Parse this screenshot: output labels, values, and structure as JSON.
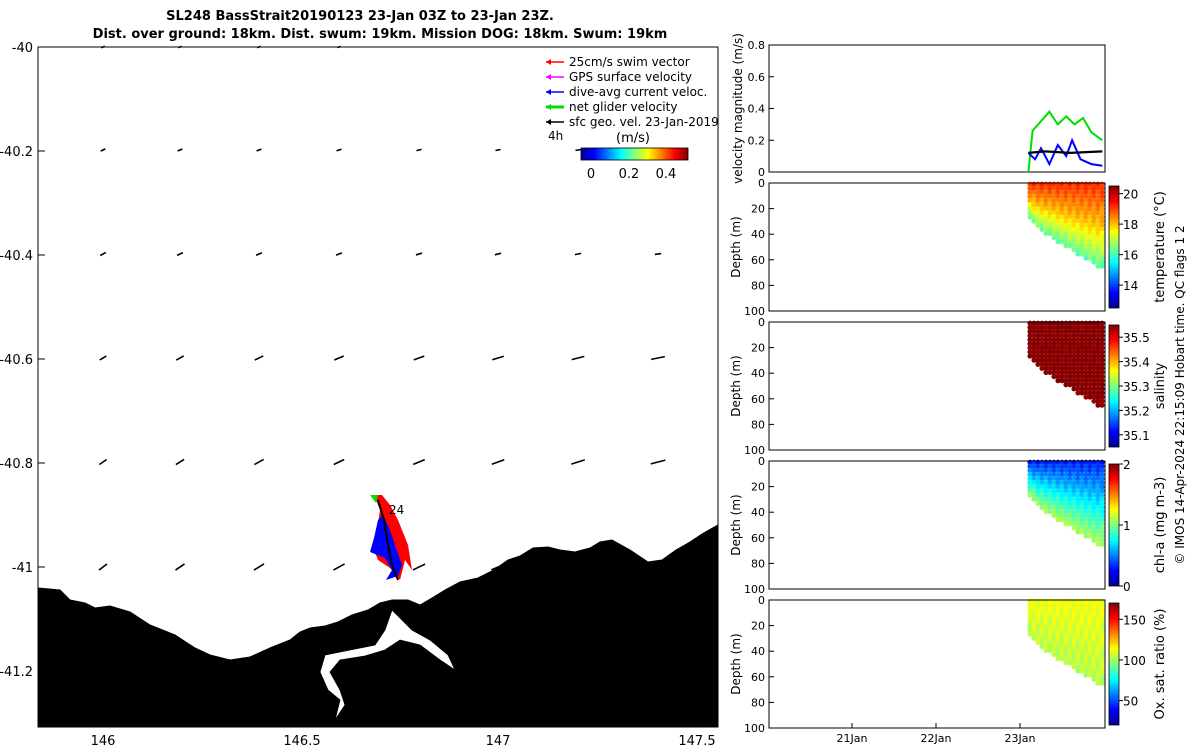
{
  "title": {
    "line1": "SL248 BassStrait20190123 23-Jan 03Z to 23-Jan 23Z.",
    "line2": "Dist. over ground: 18km. Dist. swum: 19km. Mission DOG: 18km. Swum: 19km"
  },
  "credit": "© IMOS 14-Apr-2024 22:15:09 Hobart time. QC flags 1  2",
  "colors": {
    "land": "#f9cfa0",
    "swim": "#ff0000",
    "gps": "#ff00ff",
    "current": "#0000ff",
    "net": "#00dd00",
    "geo": "#000000"
  },
  "map": {
    "lon_ticks": [
      "146",
      "146.5",
      "147",
      "147.5"
    ],
    "lat_ticks": [
      "-40",
      "-40.2",
      "-40.4",
      "-40.6",
      "-40.8",
      "-41",
      "-41.2"
    ],
    "lon_range": [
      145.83,
      147.55
    ],
    "lat_range": [
      -41.3,
      -40.0
    ],
    "legend": [
      {
        "label": "25cm/s swim vector",
        "color": "#ff0000"
      },
      {
        "label": "GPS surface velocity",
        "color": "#ff00ff"
      },
      {
        "label": "dive-avg current veloc.",
        "color": "#0000ff"
      },
      {
        "label": "net glider velocity",
        "color": "#00dd00"
      },
      {
        "label": "sfc geo. vel. 23-Jan-2019",
        "color": "#000000"
      }
    ],
    "interval_label": "4h",
    "colorbar_unit": "(m/s)",
    "colorbar_ticks": [
      "0",
      "0.2",
      "0.4"
    ],
    "isobaths": "isobaths: 0   200  1000m",
    "track_label": "24"
  },
  "chart_data": [
    {
      "type": "line",
      "ylabel": "velocity magnitude (m/s)",
      "ylim": [
        0,
        0.8
      ],
      "y_ticks": [
        "0",
        "0.2",
        "0.4",
        "0.6",
        "0.8"
      ],
      "x_ticks": [
        "21Jan",
        "22Jan",
        "23Jan"
      ],
      "series": [
        {
          "color": "#00dd00",
          "points": [
            [
              23.1,
              0.0
            ],
            [
              23.15,
              0.26
            ],
            [
              23.25,
              0.32
            ],
            [
              23.35,
              0.38
            ],
            [
              23.45,
              0.3
            ],
            [
              23.55,
              0.35
            ],
            [
              23.65,
              0.3
            ],
            [
              23.75,
              0.34
            ],
            [
              23.85,
              0.25
            ],
            [
              23.98,
              0.2
            ]
          ]
        },
        {
          "color": "#0000ff",
          "points": [
            [
              23.1,
              0.12
            ],
            [
              23.18,
              0.08
            ],
            [
              23.25,
              0.15
            ],
            [
              23.35,
              0.05
            ],
            [
              23.45,
              0.17
            ],
            [
              23.55,
              0.1
            ],
            [
              23.62,
              0.2
            ],
            [
              23.72,
              0.08
            ],
            [
              23.85,
              0.05
            ],
            [
              23.98,
              0.04
            ]
          ]
        },
        {
          "color": "#000000",
          "points": [
            [
              23.1,
              0.12
            ],
            [
              23.3,
              0.13
            ],
            [
              23.6,
              0.12
            ],
            [
              23.98,
              0.13
            ]
          ]
        }
      ]
    },
    {
      "type": "scatter",
      "ylabel": "Depth (m)",
      "clabel": "temperature (°C)",
      "cticks": [
        "14",
        "16",
        "18",
        "20"
      ],
      "crange": [
        12.5,
        20.5
      ],
      "surface_value": 19.2,
      "mid_value": 18.0,
      "bottom_value": 16.2
    },
    {
      "type": "scatter",
      "ylabel": "Depth (m)",
      "clabel": "salinity",
      "cticks": [
        "35.1",
        "35.2",
        "35.3",
        "35.4",
        "35.5"
      ],
      "crange": [
        35.05,
        35.55
      ],
      "surface_value": 35.55,
      "mid_value": 35.55,
      "bottom_value": 35.55
    },
    {
      "type": "scatter",
      "ylabel": "Depth (m)",
      "clabel": "chl-a (mg m-3)",
      "cticks": [
        "0",
        "1",
        "2"
      ],
      "crange": [
        0,
        2
      ],
      "surface_value": 0.3,
      "mid_value": 0.7,
      "bottom_value": 1.1
    },
    {
      "type": "scatter",
      "ylabel": "Depth (m)",
      "clabel": "Ox. sat. ratio (%)",
      "cticks": [
        "50",
        "100",
        "150"
      ],
      "crange": [
        20,
        170
      ],
      "surface_value": 112,
      "mid_value": 108,
      "bottom_value": 103
    }
  ],
  "depth_ticks": [
    "0",
    "20",
    "40",
    "60",
    "80",
    "100"
  ]
}
